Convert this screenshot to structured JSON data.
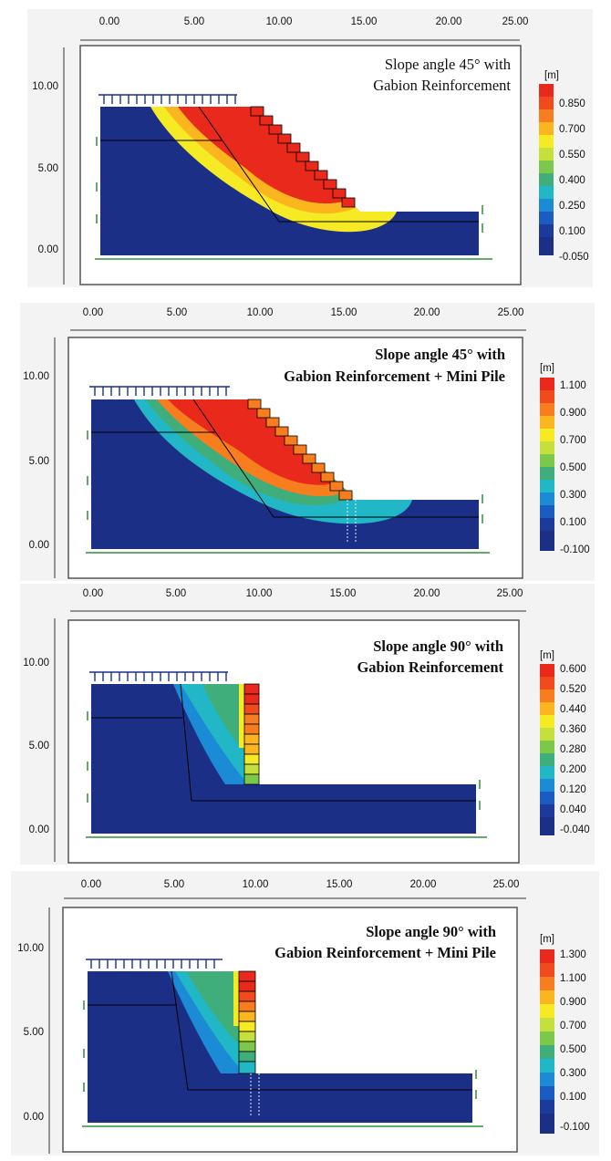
{
  "x_axis_ticks": [
    "0.00",
    "5.00",
    "10.00",
    "15.00",
    "20.00",
    "25.00"
  ],
  "y_axis_ticks": [
    "10.00",
    "5.00",
    "0.00"
  ],
  "panels": [
    {
      "title_line1": "Slope angle 45° with",
      "title_line2": "Gabion Reinforcement",
      "title_bold": false,
      "slope": "45",
      "mini_pile": false,
      "legend": {
        "unit": "[m]",
        "labels": [
          "0.850",
          "0.700",
          "0.550",
          "0.400",
          "0.250",
          "0.100",
          "-0.050"
        ]
      }
    },
    {
      "title_line1": "Slope angle 45° with",
      "title_line2": "Gabion Reinforcement + Mini Pile",
      "title_bold": true,
      "slope": "45",
      "mini_pile": true,
      "legend": {
        "unit": "[m]",
        "labels": [
          "1.100",
          "0.900",
          "0.700",
          "0.500",
          "0.300",
          "0.100",
          "-0.100"
        ]
      }
    },
    {
      "title_line1": "Slope angle 90° with",
      "title_line2": "Gabion Reinforcement",
      "title_bold": true,
      "slope": "90",
      "mini_pile": false,
      "legend": {
        "unit": "[m]",
        "labels": [
          "0.600",
          "0.520",
          "0.440",
          "0.360",
          "0.280",
          "0.200",
          "0.120",
          "0.040",
          "-0.040"
        ]
      }
    },
    {
      "title_line1": "Slope angle 90° with",
      "title_line2": "Gabion Reinforcement + Mini Pile",
      "title_bold": true,
      "slope": "90",
      "mini_pile": true,
      "legend": {
        "unit": "[m]",
        "labels": [
          "1.300",
          "1.100",
          "0.900",
          "0.700",
          "0.500",
          "0.300",
          "0.100",
          "-0.100"
        ]
      }
    }
  ],
  "colors": {
    "soil_blue": "#1c2f86",
    "load_arrow": "#1c2f86",
    "support_green": "#2f8f3a",
    "legend_scale": [
      "#e8291c",
      "#f14a1c",
      "#f77d1e",
      "#fbb51e",
      "#f6ea24",
      "#c6e03b",
      "#7cc84a",
      "#3fae7a",
      "#21b7c7",
      "#1c8bd6",
      "#1b5cc0",
      "#1c3a9a",
      "#1c2f86"
    ]
  }
}
